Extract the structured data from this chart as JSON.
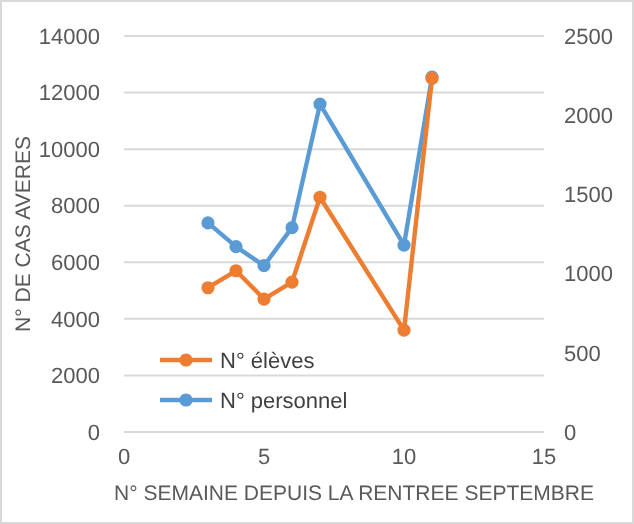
{
  "chart_data": {
    "type": "line",
    "xlabel": "N° SEMAINE DEPUIS LA RENTREE SEPTEMBRE",
    "ylabel": "N° DE CAS AVERES",
    "x": [
      3,
      4,
      5,
      6,
      7,
      10,
      11
    ],
    "series": [
      {
        "name": "N° élèves",
        "color": "#ed7d31",
        "values": [
          5100,
          5700,
          4700,
          5300,
          8300,
          3600,
          12500
        ]
      },
      {
        "name": "N° personnel",
        "color": "#5b9bd5",
        "axis": "y2",
        "values": [
          1320,
          1170,
          1050,
          1290,
          2070,
          1180,
          2240
        ]
      }
    ],
    "xlim": [
      0,
      15
    ],
    "xticks": [
      0,
      5,
      10,
      15
    ],
    "ylim": [
      0,
      14000
    ],
    "yticks": [
      0,
      2000,
      4000,
      6000,
      8000,
      10000,
      12000,
      14000
    ],
    "y2lim": [
      0,
      2500
    ],
    "y2ticks": [
      0,
      500,
      1000,
      1500,
      2000,
      2500
    ],
    "grid": "y",
    "legend": "bottom",
    "marker": "circle",
    "line_style": "solid"
  }
}
